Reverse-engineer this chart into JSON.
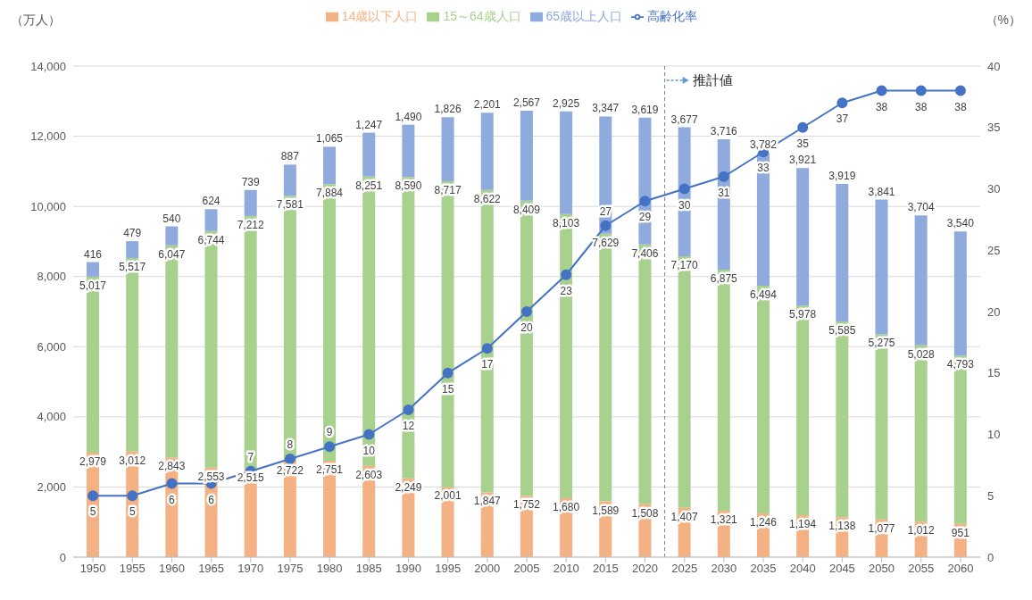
{
  "chart_data": {
    "type": "bar",
    "stacked": true,
    "ylabel": "（万人）",
    "y2label": "（%）",
    "x": [
      1950,
      1955,
      1960,
      1965,
      1970,
      1975,
      1980,
      1985,
      1990,
      1995,
      2000,
      2005,
      2010,
      2015,
      2020,
      2025,
      2030,
      2035,
      2040,
      2045,
      2050,
      2055,
      2060
    ],
    "xlim": [
      1947.5,
      2062.5
    ],
    "xticks": [
      1950,
      1955,
      1960,
      1965,
      1970,
      1975,
      1980,
      1985,
      1990,
      1995,
      2000,
      2005,
      2010,
      2015,
      2020,
      2025,
      2030,
      2035,
      2040,
      2045,
      2050,
      2055,
      2060
    ],
    "ylim": [
      0,
      14000
    ],
    "yticks": [
      0,
      {
        "value": 2000,
        "label": "2,000"
      },
      {
        "value": 4000,
        "label": "4,000"
      },
      {
        "value": 6000,
        "label": "6,000"
      },
      {
        "value": 8000,
        "label": "8,000"
      },
      {
        "value": 10000,
        "label": "10,000"
      },
      {
        "value": 12000,
        "label": "12,000"
      },
      {
        "value": 14000,
        "label": "14,000"
      }
    ],
    "y2lim": [
      0,
      40
    ],
    "y2ticks": [
      0,
      5,
      10,
      15,
      20,
      25,
      30,
      35,
      40
    ],
    "grid": "y",
    "legend": "top",
    "marker": "circle",
    "series": [
      {
        "name": "14歳以下人口",
        "color": "#f4b183",
        "values": [
          2979,
          3012,
          2843,
          2553,
          2515,
          2722,
          2751,
          2603,
          2249,
          2001,
          1847,
          1752,
          1680,
          1589,
          1508,
          1407,
          1321,
          1246,
          1194,
          1138,
          1077,
          1012,
          951
        ],
        "value_labels": [
          "2,979",
          "3,012",
          "2,843",
          "2,553",
          "2,515",
          "2,722",
          "2,751",
          "2,603",
          "2,249",
          "2,001",
          "1,847",
          "1,752",
          "1,680",
          "1,589",
          "1,508",
          "1,407",
          "1,321",
          "1,246",
          "1,194",
          "1,138",
          "1,077",
          "1,012",
          "951"
        ]
      },
      {
        "name": "15～64歳人口",
        "color": "#a9d18e",
        "values": [
          5017,
          5517,
          6047,
          6744,
          7212,
          7581,
          7884,
          8251,
          8590,
          8717,
          8622,
          8409,
          8103,
          7629,
          7406,
          7170,
          6875,
          6494,
          5978,
          5585,
          5275,
          5028,
          4793
        ],
        "value_labels": [
          "5,017",
          "5,517",
          "6,047",
          "6,744",
          "7,212",
          "7,581",
          "7,884",
          "8,251",
          "8,590",
          "8,717",
          "8,622",
          "8,409",
          "8,103",
          "7,629",
          "7,406",
          "7,170",
          "6,875",
          "6,494",
          "5,978",
          "5,585",
          "5,275",
          "5,028",
          "4,793"
        ]
      },
      {
        "name": "65歳以上人口",
        "color": "#8faadc",
        "values": [
          416,
          479,
          540,
          624,
          739,
          887,
          1065,
          1247,
          1490,
          1826,
          2201,
          2567,
          2925,
          3347,
          3619,
          3677,
          3716,
          3782,
          3921,
          3919,
          3841,
          3704,
          3540
        ],
        "value_labels": [
          "416",
          "479",
          "540",
          "624",
          "739",
          "887",
          "1,065",
          "1,247",
          "1,490",
          "1,826",
          "2,201",
          "2,567",
          "2,925",
          "3,347",
          "3,619",
          "3,677",
          "3,716",
          "3,782",
          "3,921",
          "3,919",
          "3,841",
          "3,704",
          "3,540"
        ]
      },
      {
        "name": "高齢化率",
        "type": "line",
        "axis": "y2",
        "color": "#4472c4",
        "values": [
          5,
          5,
          6,
          6,
          7,
          8,
          9,
          10,
          12,
          15,
          17,
          20,
          23,
          27,
          29,
          30,
          31,
          33,
          35,
          37,
          38,
          38,
          38
        ],
        "value_labels": [
          "5",
          "5",
          "6",
          "6",
          "7",
          "8",
          "9",
          "10",
          "12",
          "15",
          "17",
          "20",
          "23",
          "27",
          "29",
          "30",
          "31",
          "33",
          "35",
          "37",
          "38",
          "38",
          "38"
        ]
      }
    ],
    "ref_lines": [
      {
        "axis": "x",
        "value": 2022.5,
        "label": "推計値",
        "line_style": "dashed",
        "color": "#7f7f7f"
      }
    ]
  }
}
